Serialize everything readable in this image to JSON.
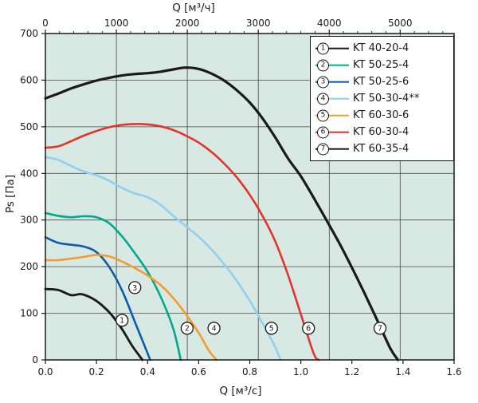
{
  "chart_data": {
    "type": "line",
    "title": "",
    "colors": {
      "plot_bg": "#d8e8e2",
      "grid": "#4a4a4a",
      "frame": "#1a1a1a",
      "text": "#1a1a1a"
    },
    "x_bottom": {
      "label": "Q [м³/с]",
      "min": 0,
      "max": 1.6,
      "tick_labels": [
        "0.0",
        "0.2",
        "0.4",
        "0.6",
        "0.8",
        "1.0",
        "1.2",
        "1.4",
        "1.6"
      ]
    },
    "x_top": {
      "label": "Q [м³/ч]",
      "unit_per_bottom": 3600,
      "tick_values": [
        0,
        1000,
        2000,
        3000,
        4000,
        5000
      ],
      "minor_step": 200
    },
    "y": {
      "label": "Ps [Па]",
      "min": 0,
      "max": 700,
      "tick_step": 100
    },
    "series": [
      {
        "num": 1,
        "name": "KT 40-20-4",
        "color": "#1a1a1a",
        "points": [
          [
            0,
            152
          ],
          [
            0.05,
            150
          ],
          [
            0.1,
            139
          ],
          [
            0.14,
            141
          ],
          [
            0.18,
            133
          ],
          [
            0.22,
            118
          ],
          [
            0.26,
            96
          ],
          [
            0.3,
            66
          ],
          [
            0.34,
            30
          ],
          [
            0.38,
            0
          ]
        ]
      },
      {
        "num": 2,
        "name": "KT 50-25-4",
        "color": "#00a98f",
        "points": [
          [
            0,
            315
          ],
          [
            0.05,
            309
          ],
          [
            0.1,
            306
          ],
          [
            0.15,
            308
          ],
          [
            0.2,
            306
          ],
          [
            0.25,
            293
          ],
          [
            0.3,
            265
          ],
          [
            0.35,
            229
          ],
          [
            0.4,
            189
          ],
          [
            0.45,
            137
          ],
          [
            0.5,
            68
          ],
          [
            0.53,
            0
          ]
        ]
      },
      {
        "num": 3,
        "name": "KT 50-25-6",
        "color": "#0b5cad",
        "points": [
          [
            0,
            263
          ],
          [
            0.05,
            251
          ],
          [
            0.1,
            247
          ],
          [
            0.15,
            243
          ],
          [
            0.2,
            231
          ],
          [
            0.25,
            199
          ],
          [
            0.3,
            149
          ],
          [
            0.35,
            82
          ],
          [
            0.4,
            14
          ],
          [
            0.41,
            0
          ]
        ]
      },
      {
        "num": 4,
        "name": "KT 50-30-4**",
        "color": "#8fd0f0",
        "points": [
          [
            0,
            435
          ],
          [
            0.05,
            429
          ],
          [
            0.1,
            416
          ],
          [
            0.15,
            404
          ],
          [
            0.2,
            396
          ],
          [
            0.25,
            384
          ],
          [
            0.3,
            369
          ],
          [
            0.35,
            357
          ],
          [
            0.4,
            349
          ],
          [
            0.45,
            333
          ],
          [
            0.5,
            309
          ],
          [
            0.55,
            287
          ],
          [
            0.6,
            264
          ],
          [
            0.65,
            237
          ],
          [
            0.7,
            205
          ],
          [
            0.75,
            169
          ],
          [
            0.8,
            127
          ],
          [
            0.85,
            79
          ],
          [
            0.9,
            27
          ],
          [
            0.92,
            0
          ]
        ]
      },
      {
        "num": 5,
        "name": "KT 60-30-6",
        "color": "#f39c2d",
        "points": [
          [
            0,
            214
          ],
          [
            0.05,
            214
          ],
          [
            0.1,
            217
          ],
          [
            0.15,
            221
          ],
          [
            0.2,
            225
          ],
          [
            0.25,
            222
          ],
          [
            0.3,
            211
          ],
          [
            0.35,
            197
          ],
          [
            0.4,
            181
          ],
          [
            0.45,
            161
          ],
          [
            0.5,
            133
          ],
          [
            0.55,
            98
          ],
          [
            0.6,
            58
          ],
          [
            0.64,
            20
          ],
          [
            0.67,
            0
          ]
        ]
      },
      {
        "num": 6,
        "name": "KT 60-30-4",
        "color": "#e2342b",
        "points": [
          [
            0,
            455
          ],
          [
            0.05,
            458
          ],
          [
            0.1,
            469
          ],
          [
            0.15,
            481
          ],
          [
            0.2,
            491
          ],
          [
            0.25,
            499
          ],
          [
            0.3,
            504
          ],
          [
            0.35,
            506
          ],
          [
            0.4,
            505
          ],
          [
            0.45,
            501
          ],
          [
            0.5,
            493
          ],
          [
            0.55,
            481
          ],
          [
            0.6,
            466
          ],
          [
            0.65,
            446
          ],
          [
            0.7,
            421
          ],
          [
            0.75,
            391
          ],
          [
            0.8,
            354
          ],
          [
            0.85,
            309
          ],
          [
            0.9,
            254
          ],
          [
            0.95,
            182
          ],
          [
            1.0,
            98
          ],
          [
            1.05,
            14
          ],
          [
            1.07,
            0
          ]
        ]
      },
      {
        "num": 7,
        "name": "KT 60-35-4",
        "color": "#1a1a1a",
        "points": [
          [
            0,
            561
          ],
          [
            0.05,
            571
          ],
          [
            0.1,
            582
          ],
          [
            0.15,
            591
          ],
          [
            0.2,
            599
          ],
          [
            0.25,
            605
          ],
          [
            0.3,
            610
          ],
          [
            0.35,
            613
          ],
          [
            0.4,
            615
          ],
          [
            0.45,
            618
          ],
          [
            0.5,
            623
          ],
          [
            0.55,
            627
          ],
          [
            0.6,
            624
          ],
          [
            0.65,
            614
          ],
          [
            0.7,
            599
          ],
          [
            0.75,
            578
          ],
          [
            0.8,
            552
          ],
          [
            0.85,
            518
          ],
          [
            0.9,
            477
          ],
          [
            0.95,
            432
          ],
          [
            1.0,
            394
          ],
          [
            1.05,
            348
          ],
          [
            1.1,
            300
          ],
          [
            1.15,
            251
          ],
          [
            1.2,
            198
          ],
          [
            1.25,
            142
          ],
          [
            1.3,
            84
          ],
          [
            1.35,
            25
          ],
          [
            1.38,
            0
          ]
        ]
      }
    ],
    "curve_markers": [
      {
        "num": 1,
        "x": 0.3,
        "y": 85
      },
      {
        "num": 3,
        "x": 0.35,
        "y": 155
      },
      {
        "num": 2,
        "x": 0.555,
        "y": 68
      },
      {
        "num": 4,
        "x": 0.66,
        "y": 68
      },
      {
        "num": 5,
        "x": 0.885,
        "y": 68
      },
      {
        "num": 6,
        "x": 1.03,
        "y": 68
      },
      {
        "num": 7,
        "x": 1.31,
        "y": 68
      }
    ],
    "legend": [
      {
        "num": 1,
        "label": "KT 40-20-4",
        "color": "#1a1a1a"
      },
      {
        "num": 2,
        "label": "KT 50-25-4",
        "color": "#00a98f"
      },
      {
        "num": 3,
        "label": "KT 50-25-6",
        "color": "#0b5cad"
      },
      {
        "num": 4,
        "label": "KT 50-30-4**",
        "color": "#8fd0f0"
      },
      {
        "num": 5,
        "label": "KT 60-30-6",
        "color": "#f39c2d"
      },
      {
        "num": 6,
        "label": "KT 60-30-4",
        "color": "#e2342b"
      },
      {
        "num": 7,
        "label": "KT 60-35-4",
        "color": "#1a1a1a"
      }
    ],
    "legend_position": "top-right",
    "grid": true
  }
}
